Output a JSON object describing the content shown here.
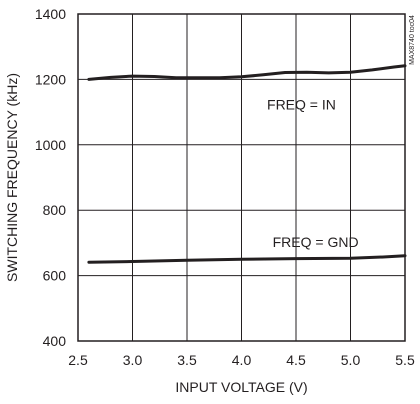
{
  "chart_data": {
    "type": "line",
    "title": "",
    "xlabel": "INPUT VOLTAGE (V)",
    "ylabel": "SWITCHING FREQUENCY (kHz)",
    "xlim": [
      2.5,
      5.5
    ],
    "ylim": [
      400,
      1400
    ],
    "grid": true,
    "x_ticks": [
      2.5,
      3.0,
      3.5,
      4.0,
      4.5,
      5.0,
      5.5
    ],
    "x_tick_labels": [
      "2.5",
      "3.0",
      "3.5",
      "4.0",
      "4.5",
      "5.0",
      "5.5"
    ],
    "y_ticks": [
      400,
      600,
      800,
      1000,
      1200,
      1400
    ],
    "y_tick_labels": [
      "400",
      "600",
      "800",
      "1000",
      "1200",
      "1400"
    ],
    "series": [
      {
        "x": [
          2.6,
          2.8,
          3.0,
          3.2,
          3.4,
          3.6,
          3.8,
          4.0,
          4.2,
          4.4,
          4.6,
          4.8,
          5.0,
          5.2,
          5.4,
          5.5
        ],
        "values": [
          1200,
          1206,
          1210,
          1209,
          1205,
          1205,
          1205,
          1208,
          1214,
          1221,
          1222,
          1220,
          1222,
          1229,
          1238,
          1242
        ]
      },
      {
        "x": [
          2.6,
          3.0,
          3.5,
          4.0,
          4.5,
          5.0,
          5.3,
          5.5
        ],
        "values": [
          641,
          643,
          647,
          650,
          652,
          653,
          657,
          661
        ]
      }
    ],
    "annotations": [
      {
        "text": "FREQ = IN"
      },
      {
        "text": "FREQ = GND"
      }
    ],
    "figure_id": "MAX8740 toc04"
  }
}
